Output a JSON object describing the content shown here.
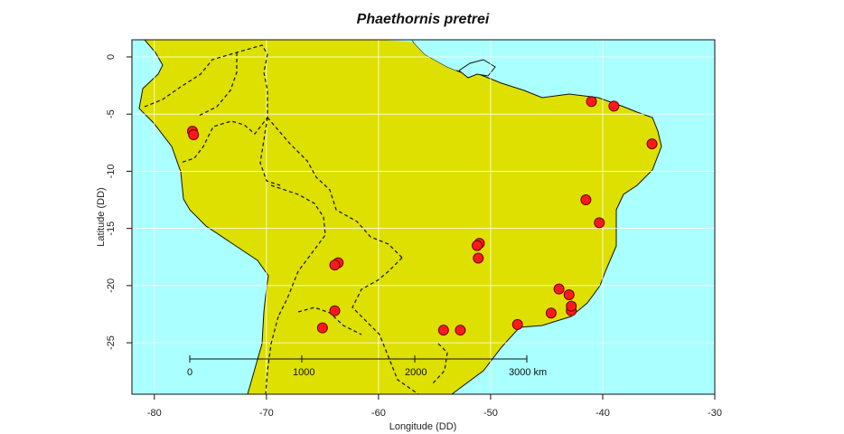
{
  "title": "Phaethornis pretrei",
  "colors": {
    "ocean": "#aaffff",
    "land": "#dde000",
    "point_fill": "#ff1a1a",
    "point_stroke": "#6a0000",
    "grid": "#ffffff"
  },
  "axes": {
    "xlabel": "Longitude (DD)",
    "ylabel": "Latitude (DD)",
    "xlim": [
      -82,
      -30
    ],
    "ylim": [
      -29.5,
      1.5
    ],
    "xticks": [
      -80,
      -70,
      -60,
      -50,
      -40,
      -30
    ],
    "yticks": [
      0,
      -5,
      -10,
      -15,
      -20,
      -25
    ],
    "xtick_labels": [
      "-80",
      "-70",
      "-60",
      "-50",
      "-40",
      "-30"
    ],
    "ytick_labels": [
      "0",
      "-5",
      "-10",
      "-15",
      "-20",
      "-25"
    ]
  },
  "scale_bar": {
    "labels": [
      "0",
      "1000",
      "2000",
      "3000 km"
    ]
  },
  "occurrences": [
    {
      "lon": -76.6,
      "lat": -6.5
    },
    {
      "lon": -76.5,
      "lat": -6.8
    },
    {
      "lon": -41.0,
      "lat": -3.9
    },
    {
      "lon": -39.0,
      "lat": -4.3
    },
    {
      "lon": -35.6,
      "lat": -7.6
    },
    {
      "lon": -41.5,
      "lat": -12.5
    },
    {
      "lon": -40.3,
      "lat": -14.5
    },
    {
      "lon": -51.0,
      "lat": -16.3
    },
    {
      "lon": -51.2,
      "lat": -16.5
    },
    {
      "lon": -51.1,
      "lat": -17.6
    },
    {
      "lon": -63.6,
      "lat": -18.0
    },
    {
      "lon": -63.9,
      "lat": -18.2
    },
    {
      "lon": -63.9,
      "lat": -22.2
    },
    {
      "lon": -65.0,
      "lat": -23.7
    },
    {
      "lon": -54.2,
      "lat": -23.9
    },
    {
      "lon": -52.7,
      "lat": -23.9
    },
    {
      "lon": -47.6,
      "lat": -23.4
    },
    {
      "lon": -44.6,
      "lat": -22.4
    },
    {
      "lon": -42.8,
      "lat": -22.2
    },
    {
      "lon": -42.8,
      "lat": -21.8
    },
    {
      "lon": -43.0,
      "lat": -20.8
    },
    {
      "lon": -43.9,
      "lat": -20.3
    }
  ]
}
